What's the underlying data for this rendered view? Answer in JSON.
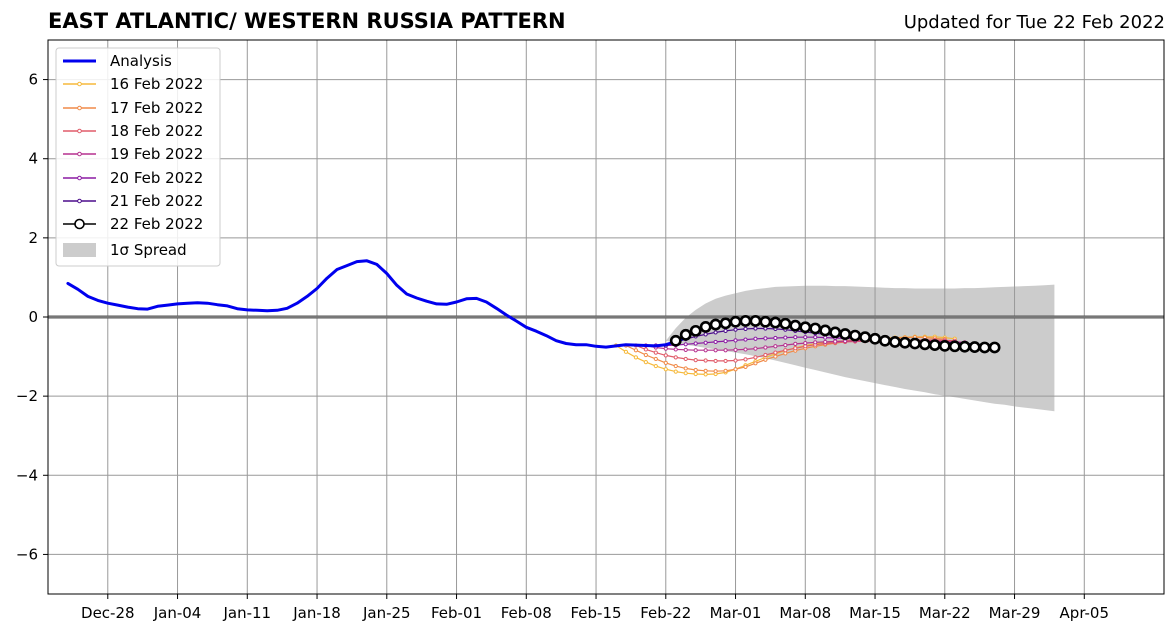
{
  "chart_data": {
    "type": "line",
    "title": "EAST ATLANTIC/ WESTERN RUSSIA PATTERN",
    "subtitle": "Updated for Tue 22 Feb 2022",
    "xlabel": "",
    "ylabel": "",
    "ylim": [
      -7,
      7
    ],
    "xlim": [
      "2021-12-22",
      "2022-04-13"
    ],
    "grid": true,
    "legend_position": "top-left",
    "y_ticks": [
      -6,
      -4,
      -2,
      0,
      2,
      4,
      6
    ],
    "y_tick_labels": [
      "−6",
      "−4",
      "−2",
      "0",
      "2",
      "4",
      "6"
    ],
    "x_ticks": [
      "2021-12-28",
      "2022-01-04",
      "2022-01-11",
      "2022-01-18",
      "2022-01-25",
      "2022-02-01",
      "2022-02-08",
      "2022-02-15",
      "2022-02-22",
      "2022-03-01",
      "2022-03-08",
      "2022-03-15",
      "2022-03-22",
      "2022-03-29",
      "2022-04-05"
    ],
    "x_tick_labels": [
      "Dec-28",
      "Jan-04",
      "Jan-11",
      "Jan-18",
      "Jan-25",
      "Feb-01",
      "Feb-08",
      "Feb-15",
      "Feb-22",
      "Mar-01",
      "Mar-08",
      "Mar-15",
      "Mar-22",
      "Mar-29",
      "Apr-05"
    ],
    "analysis": {
      "name": "Analysis",
      "color": "#0000ee",
      "start": "2021-12-24",
      "values": [
        0.85,
        0.7,
        0.52,
        0.42,
        0.35,
        0.3,
        0.25,
        0.21,
        0.2,
        0.27,
        0.3,
        0.33,
        0.35,
        0.36,
        0.35,
        0.31,
        0.28,
        0.21,
        0.18,
        0.17,
        0.16,
        0.17,
        0.22,
        0.35,
        0.52,
        0.72,
        0.98,
        1.2,
        1.3,
        1.4,
        1.42,
        1.33,
        1.1,
        0.8,
        0.58,
        0.48,
        0.4,
        0.33,
        0.32,
        0.38,
        0.46,
        0.47,
        0.38,
        0.22,
        0.05,
        -0.1,
        -0.26,
        -0.36,
        -0.47,
        -0.6,
        -0.67,
        -0.7,
        -0.7,
        -0.74,
        -0.76,
        -0.73,
        -0.7,
        -0.71,
        -0.72,
        -0.73,
        -0.7,
        -0.62,
        -0.52
      ]
    },
    "series": [
      {
        "name": "16 Feb 2022",
        "color": "#f6b93b",
        "start": "2022-02-17",
        "values": [
          -0.72,
          -0.88,
          -1.02,
          -1.14,
          -1.24,
          -1.32,
          -1.38,
          -1.42,
          -1.44,
          -1.45,
          -1.44,
          -1.4,
          -1.32,
          -1.22,
          -1.12,
          -1.02,
          -0.93,
          -0.85,
          -0.78,
          -0.72,
          -0.68,
          -0.64,
          -0.62,
          -0.6,
          -0.58,
          -0.56,
          -0.54,
          -0.53,
          -0.52,
          -0.51,
          -0.5,
          -0.5,
          -0.5,
          -0.52,
          -0.55
        ]
      },
      {
        "name": "17 Feb 2022",
        "color": "#f08a48",
        "start": "2022-02-18",
        "values": [
          -0.72,
          -0.84,
          -0.96,
          -1.06,
          -1.16,
          -1.24,
          -1.3,
          -1.34,
          -1.36,
          -1.37,
          -1.36,
          -1.32,
          -1.26,
          -1.17,
          -1.08,
          -1.0,
          -0.92,
          -0.85,
          -0.79,
          -0.74,
          -0.7,
          -0.66,
          -0.63,
          -0.61,
          -0.59,
          -0.57,
          -0.55,
          -0.53,
          -0.52,
          -0.51,
          -0.52,
          -0.54,
          -0.56
        ]
      },
      {
        "name": "18 Feb 2022",
        "color": "#e05c6a",
        "start": "2022-02-19",
        "values": [
          -0.72,
          -0.82,
          -0.9,
          -0.97,
          -1.02,
          -1.06,
          -1.09,
          -1.1,
          -1.11,
          -1.11,
          -1.1,
          -1.07,
          -1.02,
          -0.96,
          -0.9,
          -0.84,
          -0.79,
          -0.74,
          -0.7,
          -0.67,
          -0.65,
          -0.63,
          -0.62,
          -0.61,
          -0.61,
          -0.6,
          -0.6,
          -0.59,
          -0.58,
          -0.58,
          -0.58,
          -0.59,
          -0.6
        ]
      },
      {
        "name": "19 Feb 2022",
        "color": "#b5318f",
        "start": "2022-02-20",
        "values": [
          -0.72,
          -0.77,
          -0.8,
          -0.82,
          -0.83,
          -0.84,
          -0.84,
          -0.84,
          -0.84,
          -0.83,
          -0.82,
          -0.8,
          -0.77,
          -0.74,
          -0.71,
          -0.68,
          -0.66,
          -0.64,
          -0.63,
          -0.62,
          -0.61,
          -0.6,
          -0.6,
          -0.6,
          -0.6,
          -0.6,
          -0.6,
          -0.6,
          -0.6,
          -0.61,
          -0.62,
          -0.63,
          -0.64
        ]
      },
      {
        "name": "20 Feb 2022",
        "color": "#8b1aa3",
        "start": "2022-02-21",
        "values": [
          -0.72,
          -0.72,
          -0.71,
          -0.69,
          -0.67,
          -0.65,
          -0.63,
          -0.61,
          -0.59,
          -0.57,
          -0.55,
          -0.54,
          -0.53,
          -0.52,
          -0.51,
          -0.51,
          -0.51,
          -0.52,
          -0.53,
          -0.54,
          -0.55,
          -0.56,
          -0.57,
          -0.58,
          -0.59,
          -0.6,
          -0.61,
          -0.62,
          -0.63,
          -0.64,
          -0.65,
          -0.66
        ]
      },
      {
        "name": "21 Feb 2022",
        "color": "#4b0c8c",
        "start": "2022-02-22",
        "values": [
          -0.72,
          -0.64,
          -0.56,
          -0.49,
          -0.44,
          -0.39,
          -0.35,
          -0.32,
          -0.3,
          -0.29,
          -0.29,
          -0.3,
          -0.32,
          -0.35,
          -0.38,
          -0.41,
          -0.44,
          -0.47,
          -0.5,
          -0.52,
          -0.54,
          -0.56,
          -0.58,
          -0.6,
          -0.61,
          -0.62,
          -0.63,
          -0.64,
          -0.65,
          -0.66,
          -0.67,
          -0.68
        ]
      },
      {
        "name": "22 Feb 2022",
        "color": "#000000",
        "start": "2022-02-23",
        "values": [
          -0.6,
          -0.45,
          -0.35,
          -0.25,
          -0.19,
          -0.16,
          -0.12,
          -0.1,
          -0.1,
          -0.12,
          -0.14,
          -0.17,
          -0.22,
          -0.26,
          -0.29,
          -0.34,
          -0.39,
          -0.43,
          -0.47,
          -0.51,
          -0.55,
          -0.6,
          -0.63,
          -0.65,
          -0.67,
          -0.69,
          -0.71,
          -0.73,
          -0.74,
          -0.75,
          -0.76,
          -0.77,
          -0.77
        ]
      }
    ],
    "spread": {
      "name": "1σ Spread",
      "color": "#cccccc",
      "start": "2022-02-22",
      "upper": [
        -0.6,
        -0.28,
        -0.02,
        0.18,
        0.34,
        0.46,
        0.54,
        0.6,
        0.66,
        0.7,
        0.73,
        0.76,
        0.77,
        0.78,
        0.79,
        0.79,
        0.79,
        0.78,
        0.78,
        0.77,
        0.76,
        0.75,
        0.74,
        0.73,
        0.73,
        0.72,
        0.72,
        0.72,
        0.72,
        0.72,
        0.73,
        0.73,
        0.74,
        0.75,
        0.76,
        0.77,
        0.78,
        0.79,
        0.8,
        0.82
      ],
      "lower": [
        -0.6,
        -0.65,
        -0.7,
        -0.74,
        -0.78,
        -0.82,
        -0.86,
        -0.9,
        -0.94,
        -0.99,
        -1.04,
        -1.1,
        -1.16,
        -1.22,
        -1.28,
        -1.34,
        -1.4,
        -1.46,
        -1.52,
        -1.57,
        -1.62,
        -1.67,
        -1.72,
        -1.77,
        -1.82,
        -1.86,
        -1.9,
        -1.95,
        -1.99,
        -2.03,
        -2.07,
        -2.11,
        -2.15,
        -2.19,
        -2.22,
        -2.26,
        -2.29,
        -2.32,
        -2.35,
        -2.38
      ]
    },
    "legend": [
      "Analysis",
      "16 Feb 2022",
      "17 Feb 2022",
      "18 Feb 2022",
      "19 Feb 2022",
      "20 Feb 2022",
      "21 Feb 2022",
      "22 Feb 2022",
      "1σ Spread"
    ]
  }
}
